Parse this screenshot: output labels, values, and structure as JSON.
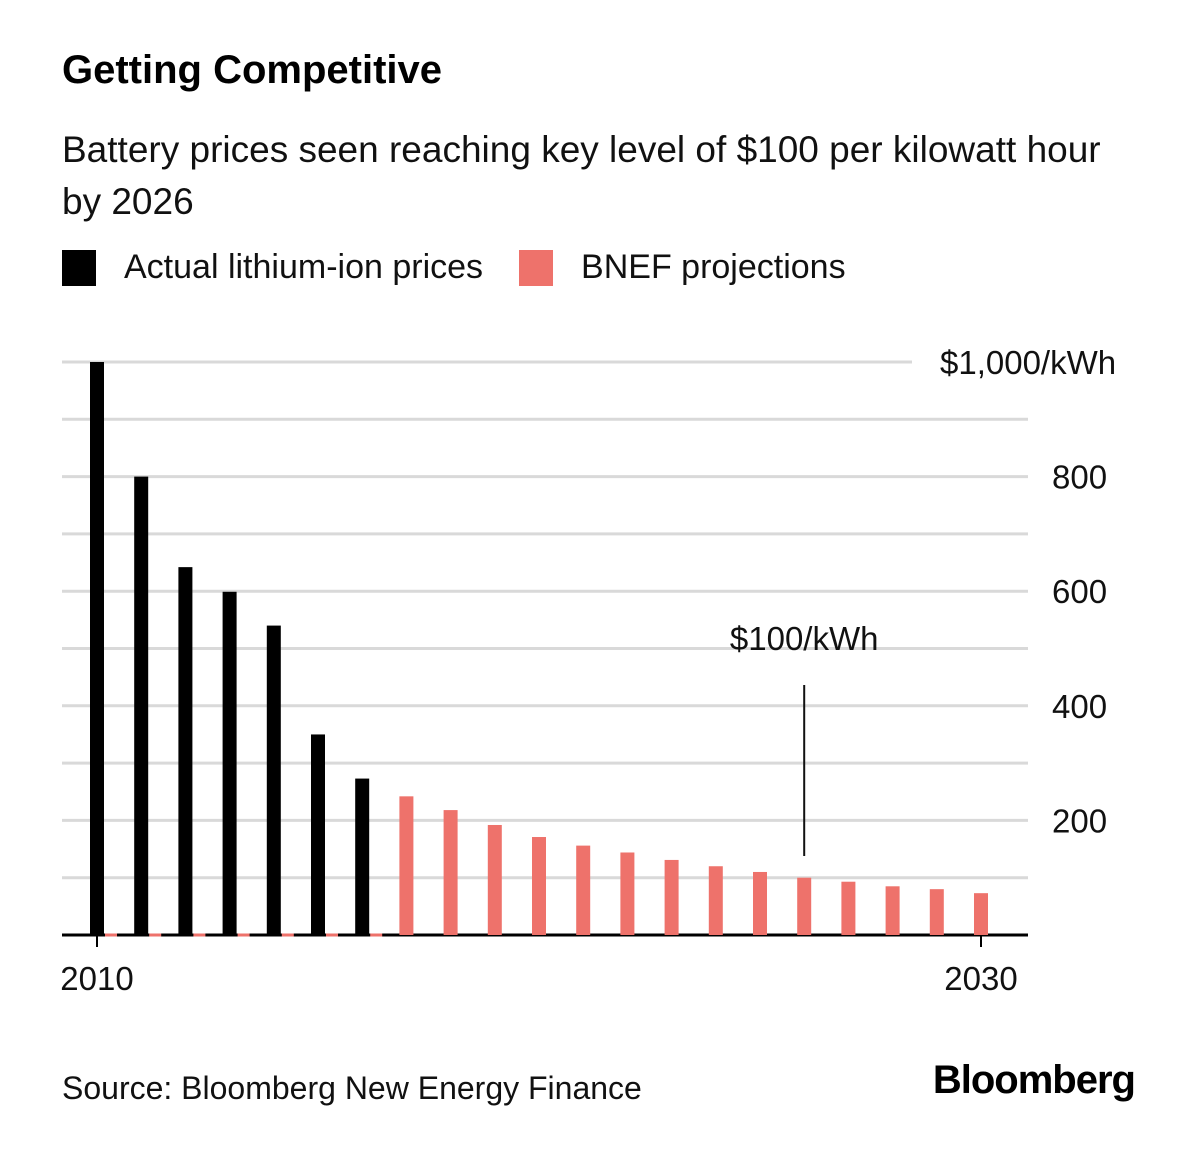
{
  "title": "Getting Competitive",
  "subtitle": "Battery prices seen reaching key level of $100 per kilowatt hour by 2026",
  "legend": {
    "actual": "Actual lithium-ion prices",
    "projected": "BNEF projections"
  },
  "colors": {
    "actual": "#000000",
    "projected": "#ee726b",
    "grid": "#d9d9d9"
  },
  "source": "Source: Bloomberg New Energy Finance",
  "brand": "Bloomberg",
  "chart_data": {
    "type": "bar",
    "x": [
      2010,
      2011,
      2012,
      2013,
      2014,
      2015,
      2016,
      2017,
      2018,
      2019,
      2020,
      2021,
      2022,
      2023,
      2024,
      2025,
      2026,
      2027,
      2028,
      2029,
      2030
    ],
    "series": [
      {
        "name": "Actual lithium-ion prices",
        "values": [
          1000,
          800,
          642,
          599,
          540,
          350,
          273,
          null,
          null,
          null,
          null,
          null,
          null,
          null,
          null,
          null,
          null,
          null,
          null,
          null,
          null
        ]
      },
      {
        "name": "BNEF projections",
        "values": [
          null,
          null,
          null,
          null,
          null,
          null,
          null,
          242,
          218,
          192,
          171,
          156,
          144,
          131,
          120,
          110,
          100,
          93,
          85,
          80,
          73
        ]
      }
    ],
    "ylim": [
      0,
      1000
    ],
    "yticks": [
      {
        "value": 200,
        "label": "200"
      },
      {
        "value": 400,
        "label": "400"
      },
      {
        "value": 600,
        "label": "600"
      },
      {
        "value": 800,
        "label": "800"
      },
      {
        "value": 1000,
        "label": "$1,000/kWh"
      }
    ],
    "xticks": [
      {
        "value": 2010,
        "label": "2010"
      },
      {
        "value": 2030,
        "label": "2030"
      }
    ],
    "grid_step": 100,
    "annotation": {
      "x": 2026,
      "y": 100,
      "label": "$100/kWh"
    },
    "legend_position": "top-left"
  }
}
